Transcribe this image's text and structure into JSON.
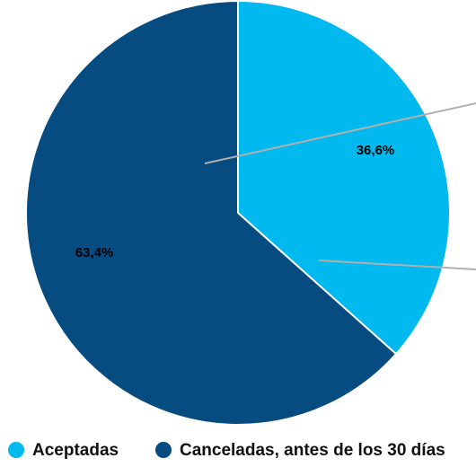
{
  "chart_data": {
    "type": "pie",
    "categories": [
      "Aceptadas",
      "Canceladas, antes de los 30 días"
    ],
    "values": [
      36.6,
      63.4
    ],
    "value_labels": [
      "36,6%",
      "63,4%"
    ],
    "colors": [
      "#00b9ef",
      "#064c80"
    ],
    "legend": "bottom"
  }
}
